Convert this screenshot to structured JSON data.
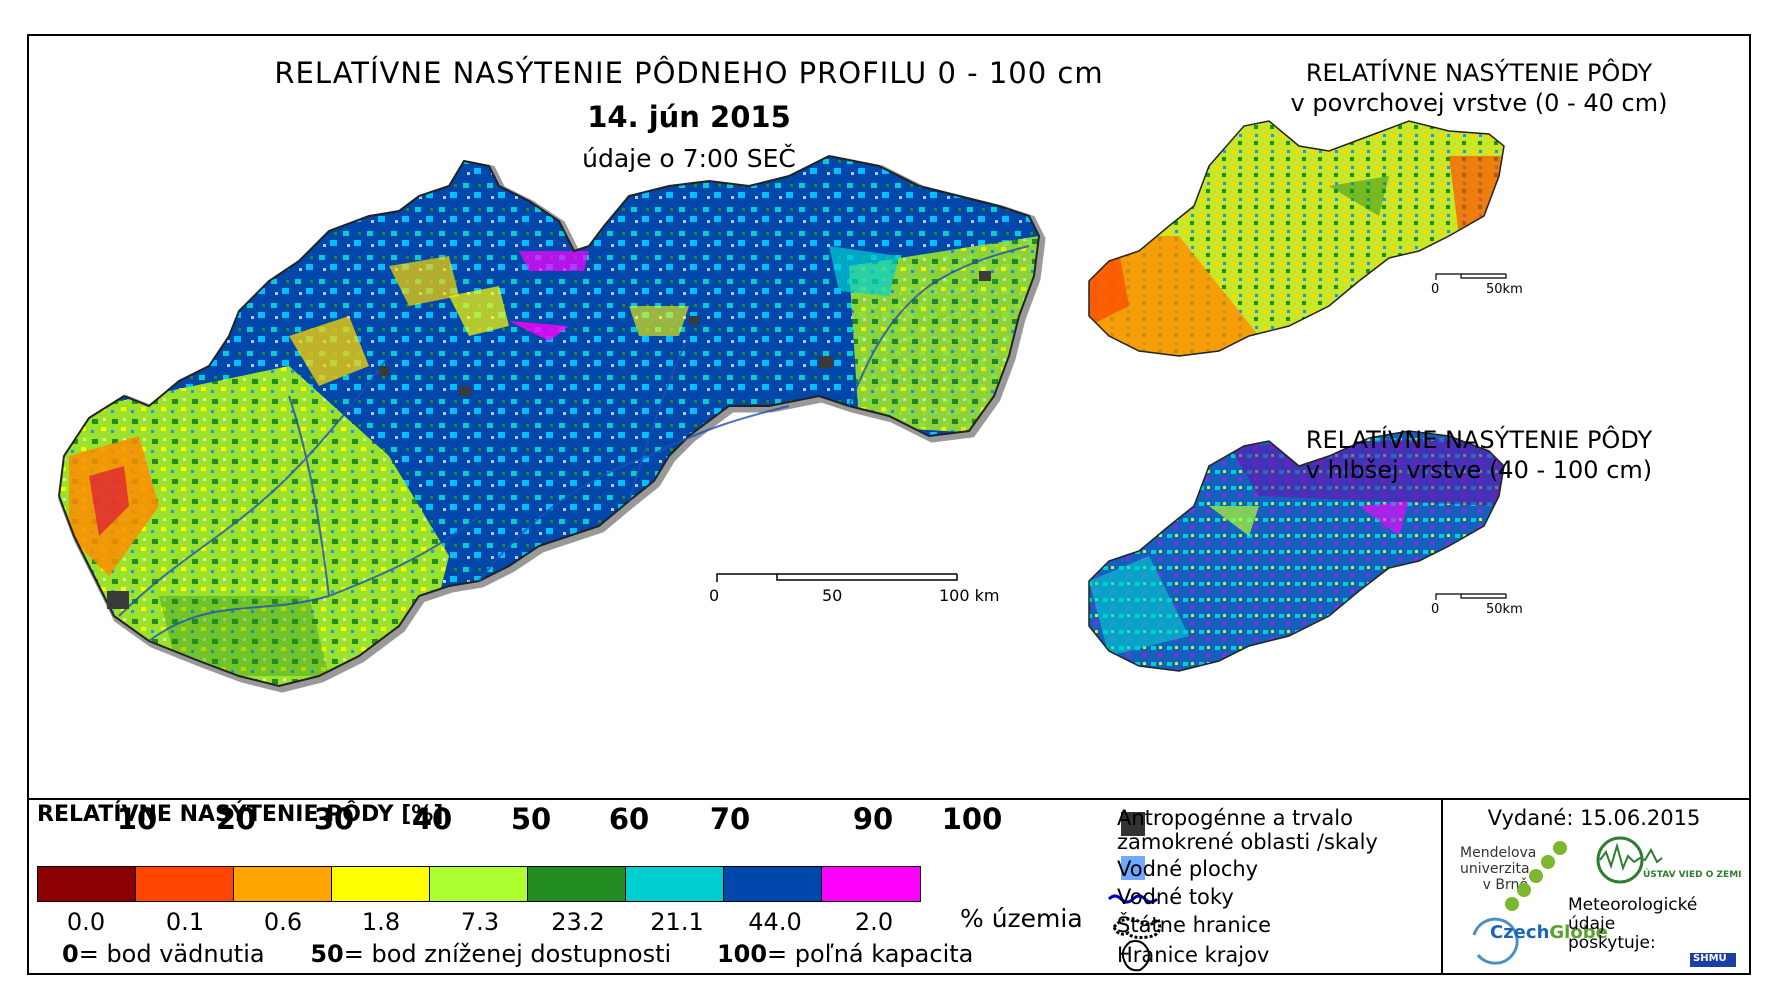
{
  "main_map": {
    "title": "RELATÍVNE NASÝTENIE PÔDNEHO PROFILU 0 - 100 cm",
    "date": "14. jún 2015",
    "subtitle": "údaje o 7:00 SEČ",
    "scale": {
      "labels": [
        "0",
        "50",
        "100 km"
      ]
    }
  },
  "inset_top": {
    "title_line1": "RELATÍVNE NASÝTENIE PÔDY",
    "title_line2": "v povrchovej vrstve (0 - 40 cm)",
    "scale": {
      "labels": [
        "0",
        "50km"
      ]
    }
  },
  "inset_bottom": {
    "title_line1": "RELATÍVNE NASÝTENIE PÔDY",
    "title_line2": "v hlbšej vrstve (40 - 100 cm)",
    "scale": {
      "labels": [
        "0",
        "50km"
      ]
    }
  },
  "legend": {
    "title": "RELATÍVNE NASÝTENIE PÔDY [%]",
    "tick_labels": [
      "10",
      "20",
      "30",
      "40",
      "50",
      "60",
      "70",
      "90",
      "100"
    ],
    "class_colors": [
      "#8b0000",
      "#ff4500",
      "#ffa500",
      "#ffff00",
      "#adff2f",
      "#228b22",
      "#00ced1",
      "#0047ab",
      "#ff00ff"
    ],
    "area_percentages": [
      "0.0",
      "0.1",
      "0.6",
      "1.8",
      "7.3",
      "23.2",
      "21.1",
      "44.0",
      "2.0"
    ],
    "area_unit": "% územia",
    "footnote": {
      "item1_value": "0",
      "item1_text": "= bod vädnutia",
      "item2_value": "50",
      "item2_text": "= bod zníženej dostupnosti",
      "item3_value": "100",
      "item3_text": "= poľná kapacita"
    }
  },
  "symbols": {
    "urban": "Antropogénne a trvalo zamokrené oblasti /skaly",
    "water_bodies": "Vodné plochy",
    "rivers": "Vodné toky",
    "state_border": "Štátne hranice",
    "region_border": "Hranice krajov",
    "urban_color": "#333333",
    "water_color": "#6fa8ff",
    "river_color": "#0000cd"
  },
  "credits": {
    "issued": "Vydané: 15.06.2015",
    "mendel_line1": "Mendelova",
    "mendel_line2": "univerzita",
    "mendel_line3": "v Brně",
    "czechglobe_a": "Czech",
    "czechglobe_b": "Globe",
    "ustav": "ÚSTAV VIED O ZEMI",
    "meteo_line1": "Meteorologické",
    "meteo_line2": "údaje",
    "meteo_line3": "poskytuje:",
    "shmu": "SHMÚ"
  }
}
